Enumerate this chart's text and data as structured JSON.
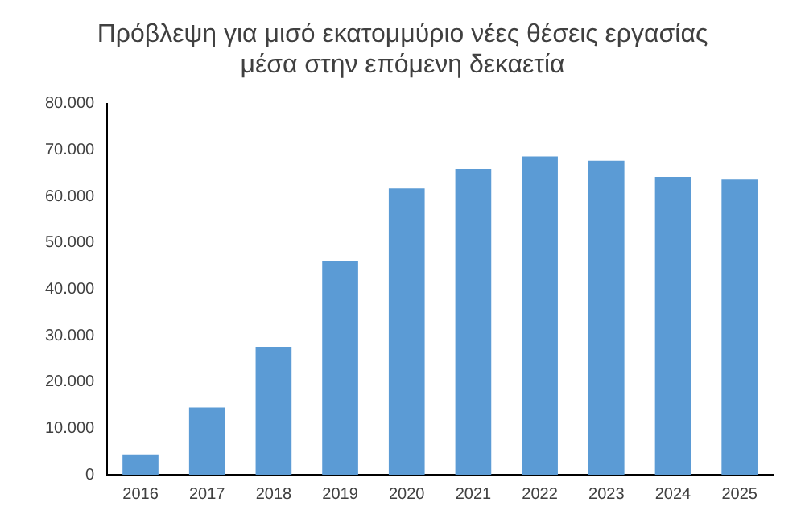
{
  "chart_data": {
    "type": "bar",
    "title": "Πρόβλεψη για μισό εκατομμύριο νέες θέσεις εργασίας\nμέσα στην επόμενη δεκαετία",
    "categories": [
      "2016",
      "2017",
      "2018",
      "2019",
      "2020",
      "2021",
      "2022",
      "2023",
      "2024",
      "2025"
    ],
    "values": [
      4400,
      14500,
      27600,
      46000,
      61700,
      65900,
      68600,
      67700,
      64200,
      63600
    ],
    "color": "#5b9bd5",
    "ylim": [
      0,
      80000
    ],
    "yticks": [
      0,
      {
        "value": 10000,
        "label": "10.000"
      },
      {
        "value": 20000,
        "label": "20.000"
      },
      {
        "value": 30000,
        "label": "30.000"
      },
      {
        "value": 40000,
        "label": "40.000"
      },
      {
        "value": 50000,
        "label": "50.000"
      },
      {
        "value": 60000,
        "label": "60.000"
      },
      {
        "value": 70000,
        "label": "70.000"
      },
      {
        "value": 80000,
        "label": "80.000"
      }
    ],
    "grid": false,
    "legend": false
  }
}
